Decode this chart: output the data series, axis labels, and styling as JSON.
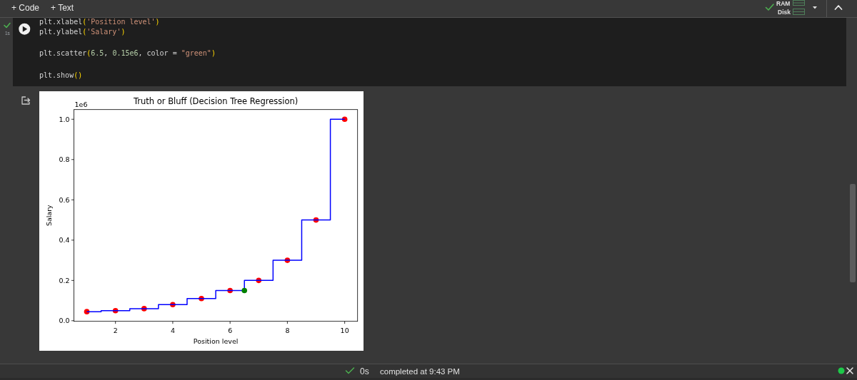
{
  "chart_data": [
    {
      "type": "other",
      "annotations": [
        "+ Code",
        "+ Text",
        "RAM",
        "Disk",
        "1s",
        "plt.xlabel('Position level')",
        "plt.ylabel('Salary')",
        "plt.scatter(6.5, 0.15e6, color = \"green\")",
        "plt.show()",
        "0s",
        "completed at 9:43 PM"
      ]
    },
    {
      "type": "scatter",
      "title": "Truth or Bluff (Decision Tree Regression)",
      "xlabel": "Position level",
      "ylabel": "Salary",
      "annotations": [
        "1e6"
      ],
      "marker": "circle",
      "xlim": [
        0.55,
        10.45
      ],
      "xticks": [
        2,
        4,
        6,
        8,
        10
      ],
      "ylim": [
        -0.003,
        1.048
      ],
      "yticks": [
        {
          "value": 0,
          "label": "0.0"
        },
        0.2,
        0.4,
        0.6,
        0.8,
        {
          "value": 1,
          "label": "1.0"
        }
      ],
      "series": [
        {
          "type": "scatter",
          "color": "#ff0000",
          "x": [
            1,
            2,
            3,
            4,
            5,
            6,
            7,
            8,
            9,
            10
          ],
          "values": [
            0.045,
            0.05,
            0.06,
            0.08,
            0.11,
            0.15,
            0.2,
            0.3,
            0.5,
            1.0
          ]
        },
        {
          "type": "step",
          "color": "#0000ff",
          "marker": "none",
          "x": [
            1,
            1.5,
            2.5,
            3.5,
            4.5,
            5.5,
            6.5,
            7.5,
            8.5,
            9.5,
            10
          ],
          "values": [
            0.045,
            0.05,
            0.06,
            0.08,
            0.11,
            0.15,
            0.2,
            0.3,
            0.5,
            1.0,
            1.0
          ]
        },
        {
          "type": "scatter",
          "color": "#008000",
          "x": [
            6.5
          ],
          "values": [
            0.15
          ]
        }
      ]
    }
  ]
}
